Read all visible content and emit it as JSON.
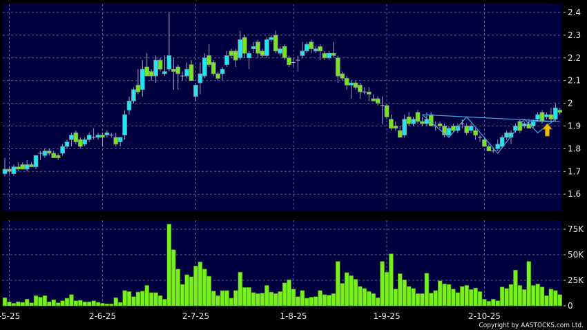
{
  "colors": {
    "background": "#00003f",
    "up": "#22e4f2",
    "down": "#78e41e",
    "volume": "#78f01e",
    "grid": "#5a5a90",
    "pattern": "#4aa8e8",
    "arrow": "#f5b800"
  },
  "copyright": "Copyright by AASTOCKS.com Ltd.",
  "chart_data": [
    {
      "type": "candlestick",
      "ylim": [
        1.55,
        2.42
      ],
      "yticks": [
        "2.4",
        "2.3",
        "2.2",
        "2.1",
        "2",
        "1.9",
        "1.8",
        "1.7",
        "1.6"
      ],
      "grid": true,
      "xticks": [
        {
          "index": 1,
          "label": "-5-25"
        },
        {
          "index": 22,
          "label": "2-6-25"
        },
        {
          "index": 43,
          "label": "2-7-25"
        },
        {
          "index": 65,
          "label": "1-8-25"
        },
        {
          "index": 86,
          "label": "1-9-25"
        },
        {
          "index": 108,
          "label": "2-10-25"
        }
      ],
      "ohlc": [
        [
          1.69,
          1.76,
          1.68,
          1.71
        ],
        [
          1.71,
          1.72,
          1.69,
          1.7
        ],
        [
          1.69,
          1.73,
          1.68,
          1.72
        ],
        [
          1.72,
          1.74,
          1.7,
          1.71
        ],
        [
          1.73,
          1.74,
          1.71,
          1.71
        ],
        [
          1.71,
          1.75,
          1.7,
          1.73
        ],
        [
          1.73,
          1.74,
          1.72,
          1.72
        ],
        [
          1.72,
          1.77,
          1.71,
          1.77
        ],
        [
          1.78,
          1.79,
          1.75,
          1.78
        ],
        [
          1.77,
          1.8,
          1.76,
          1.79
        ],
        [
          1.79,
          1.8,
          1.77,
          1.78
        ],
        [
          1.78,
          1.79,
          1.76,
          1.76
        ],
        [
          1.77,
          1.78,
          1.75,
          1.76
        ],
        [
          1.78,
          1.82,
          1.77,
          1.81
        ],
        [
          1.81,
          1.84,
          1.8,
          1.83
        ],
        [
          1.84,
          1.87,
          1.81,
          1.86
        ],
        [
          1.87,
          1.88,
          1.82,
          1.83
        ],
        [
          1.84,
          1.85,
          1.8,
          1.81
        ],
        [
          1.82,
          1.85,
          1.81,
          1.84
        ],
        [
          1.84,
          1.87,
          1.83,
          1.86
        ],
        [
          1.85,
          1.89,
          1.84,
          1.85
        ],
        [
          1.85,
          1.87,
          1.84,
          1.86
        ],
        [
          1.86,
          1.87,
          1.81,
          1.85
        ],
        [
          1.86,
          1.88,
          1.85,
          1.87
        ],
        [
          1.86,
          1.87,
          1.85,
          1.86
        ],
        [
          1.85,
          1.87,
          1.81,
          1.82
        ],
        [
          1.83,
          1.85,
          1.81,
          1.85
        ],
        [
          1.86,
          1.97,
          1.84,
          1.95
        ],
        [
          1.97,
          2.03,
          1.95,
          2.01
        ],
        [
          2.01,
          2.07,
          2.0,
          2.06
        ],
        [
          2.08,
          2.15,
          2.04,
          2.05
        ],
        [
          2.06,
          2.19,
          2.03,
          2.15
        ],
        [
          2.16,
          2.22,
          2.12,
          2.12
        ],
        [
          2.14,
          2.15,
          2.1,
          2.12
        ],
        [
          2.12,
          2.21,
          2.09,
          2.19
        ],
        [
          2.19,
          2.2,
          2.14,
          2.15
        ],
        [
          2.13,
          2.21,
          2.12,
          2.14
        ],
        [
          2.15,
          2.4,
          2.14,
          2.21
        ],
        [
          2.15,
          2.2,
          2.06,
          2.14
        ],
        [
          2.16,
          2.17,
          2.06,
          2.13
        ],
        [
          2.12,
          2.14,
          2.1,
          2.12
        ],
        [
          2.12,
          2.18,
          2.11,
          2.15
        ],
        [
          2.17,
          2.19,
          2.1,
          2.1
        ],
        [
          2.03,
          2.09,
          2.01,
          2.08
        ],
        [
          2.09,
          2.18,
          2.04,
          2.13
        ],
        [
          2.12,
          2.22,
          2.11,
          2.2
        ],
        [
          2.21,
          2.26,
          2.16,
          2.17
        ],
        [
          2.18,
          2.19,
          2.12,
          2.13
        ],
        [
          2.13,
          2.14,
          2.1,
          2.11
        ],
        [
          2.13,
          2.16,
          2.1,
          2.15
        ],
        [
          2.17,
          2.23,
          2.16,
          2.21
        ],
        [
          2.23,
          2.24,
          2.2,
          2.21
        ],
        [
          2.23,
          2.24,
          2.16,
          2.19
        ],
        [
          2.2,
          2.32,
          2.19,
          2.28
        ],
        [
          2.29,
          2.3,
          2.2,
          2.22
        ],
        [
          2.2,
          2.23,
          2.15,
          2.22
        ],
        [
          2.24,
          2.27,
          2.22,
          2.25
        ],
        [
          2.27,
          2.28,
          2.2,
          2.22
        ],
        [
          2.23,
          2.24,
          2.2,
          2.21
        ],
        [
          2.21,
          2.29,
          2.2,
          2.28
        ],
        [
          2.28,
          2.3,
          2.27,
          2.29
        ],
        [
          2.3,
          2.32,
          2.22,
          2.23
        ],
        [
          2.22,
          2.25,
          2.21,
          2.24
        ],
        [
          2.25,
          2.26,
          2.19,
          2.2
        ],
        [
          2.2,
          2.21,
          2.16,
          2.17
        ],
        [
          2.18,
          2.2,
          2.16,
          2.18
        ],
        [
          2.19,
          2.21,
          2.14,
          2.19
        ],
        [
          2.21,
          2.27,
          2.2,
          2.23
        ],
        [
          2.23,
          2.27,
          2.22,
          2.26
        ],
        [
          2.27,
          2.28,
          2.22,
          2.24
        ],
        [
          2.23,
          2.25,
          2.22,
          2.24
        ],
        [
          2.25,
          2.26,
          2.19,
          2.23
        ],
        [
          2.22,
          2.23,
          2.19,
          2.2
        ],
        [
          2.2,
          2.23,
          2.19,
          2.22
        ],
        [
          2.22,
          2.27,
          2.2,
          2.21
        ],
        [
          2.2,
          2.21,
          2.09,
          2.12
        ],
        [
          2.13,
          2.14,
          2.1,
          2.11
        ],
        [
          2.11,
          2.12,
          2.06,
          2.08
        ],
        [
          2.08,
          2.1,
          2.02,
          2.09
        ],
        [
          2.09,
          2.1,
          2.06,
          2.07
        ],
        [
          2.08,
          2.09,
          2.02,
          2.05
        ],
        [
          2.05,
          2.07,
          2.04,
          2.05
        ],
        [
          2.05,
          2.07,
          2.01,
          2.04
        ],
        [
          2.02,
          2.04,
          2.01,
          2.01
        ],
        [
          2.02,
          2.03,
          1.99,
          2.0
        ],
        [
          1.99,
          2.03,
          1.91,
          1.99
        ],
        [
          1.99,
          2.0,
          1.93,
          1.94
        ],
        [
          1.93,
          1.95,
          1.88,
          1.89
        ],
        [
          1.9,
          1.92,
          1.88,
          1.89
        ],
        [
          1.88,
          1.9,
          1.85,
          1.85
        ],
        [
          1.86,
          1.95,
          1.85,
          1.93
        ],
        [
          1.94,
          1.96,
          1.9,
          1.91
        ],
        [
          1.91,
          1.94,
          1.9,
          1.93
        ],
        [
          1.96,
          1.97,
          1.91,
          1.92
        ],
        [
          1.92,
          1.94,
          1.9,
          1.91
        ],
        [
          1.91,
          1.96,
          1.9,
          1.93
        ],
        [
          1.95,
          1.96,
          1.9,
          1.9
        ],
        [
          1.9,
          1.92,
          1.88,
          1.9
        ],
        [
          1.91,
          1.92,
          1.89,
          1.9
        ],
        [
          1.9,
          1.91,
          1.85,
          1.86
        ],
        [
          1.86,
          1.9,
          1.85,
          1.89
        ],
        [
          1.9,
          1.91,
          1.87,
          1.88
        ],
        [
          1.88,
          1.91,
          1.87,
          1.9
        ],
        [
          1.91,
          1.93,
          1.89,
          1.91
        ],
        [
          1.9,
          1.91,
          1.86,
          1.87
        ],
        [
          1.88,
          1.91,
          1.87,
          1.9
        ],
        [
          1.88,
          1.89,
          1.84,
          1.86
        ],
        [
          1.85,
          1.86,
          1.83,
          1.85
        ],
        [
          1.84,
          1.85,
          1.81,
          1.81
        ],
        [
          1.81,
          1.82,
          1.79,
          1.79
        ],
        [
          1.79,
          1.8,
          1.78,
          1.79
        ],
        [
          1.8,
          1.84,
          1.79,
          1.82
        ],
        [
          1.81,
          1.86,
          1.8,
          1.85
        ],
        [
          1.85,
          1.88,
          1.84,
          1.87
        ],
        [
          1.85,
          1.88,
          1.82,
          1.87
        ],
        [
          1.88,
          1.91,
          1.87,
          1.9
        ],
        [
          1.92,
          1.93,
          1.87,
          1.88
        ],
        [
          1.9,
          1.92,
          1.89,
          1.91
        ],
        [
          1.91,
          1.93,
          1.89,
          1.89
        ],
        [
          1.9,
          1.93,
          1.89,
          1.92
        ],
        [
          1.93,
          1.96,
          1.92,
          1.95
        ],
        [
          1.96,
          1.97,
          1.91,
          1.92
        ],
        [
          1.94,
          1.96,
          1.93,
          1.95
        ],
        [
          1.95,
          1.98,
          1.92,
          1.93
        ],
        [
          1.93,
          2.0,
          1.92,
          1.98
        ],
        [
          1.97,
          1.98,
          1.95,
          1.96
        ]
      ],
      "pattern_lines": [
        {
          "points": [
            [
              94,
              1.95
            ],
            [
              124,
              1.92
            ]
          ]
        },
        {
          "points": [
            [
              94,
              1.95
            ],
            [
              100,
              1.85
            ],
            [
              104,
              1.94
            ],
            [
              111,
              1.78
            ],
            [
              117,
              1.93
            ],
            [
              120,
              1.87
            ],
            [
              124,
              1.93
            ]
          ]
        },
        {
          "points": [
            [
              118,
              1.92
            ],
            [
              125,
              1.92
            ]
          ]
        }
      ],
      "signal_arrow": {
        "index": 122,
        "price": 1.88,
        "direction": "up"
      }
    },
    {
      "type": "bar",
      "ylim": [
        0,
        80
      ],
      "yticks": [
        {
          "value": 75,
          "label": "75K"
        },
        {
          "value": 50,
          "label": "50K"
        },
        {
          "value": 25,
          "label": "25K"
        },
        {
          "value": 0,
          "label": "0"
        }
      ],
      "unit": "K",
      "values": [
        8,
        4,
        2.5,
        4,
        3.5,
        6.5,
        3,
        10,
        8.5,
        10,
        4,
        6,
        3,
        5,
        7.5,
        11,
        5,
        5.5,
        4,
        4,
        5,
        3.5,
        2.5,
        2,
        2,
        8,
        3.5,
        15,
        14,
        9,
        13.5,
        14.5,
        20,
        13,
        13,
        10,
        6.5,
        80,
        55,
        36,
        21,
        30.5,
        28.5,
        39,
        43,
        36,
        29,
        14.5,
        10,
        15,
        15,
        7.5,
        15,
        33,
        18,
        18,
        13,
        12,
        12.5,
        20,
        13.5,
        12,
        14,
        22.5,
        25.5,
        16.5,
        9,
        15,
        7.5,
        8.5,
        9,
        15,
        11,
        10.5,
        12,
        43.5,
        22,
        32.5,
        29.5,
        26,
        19,
        17,
        14,
        12,
        8,
        43.5,
        33,
        51,
        16.5,
        31.5,
        25.5,
        19,
        17,
        12,
        12,
        32,
        12.5,
        15,
        24.5,
        21.5,
        21,
        16.5,
        13,
        19,
        20,
        16,
        17.5,
        14,
        6.5,
        4.5,
        6.5,
        5,
        18.5,
        17,
        21,
        35,
        20,
        16,
        43.5,
        20,
        21.5,
        18.5,
        10,
        16.5,
        15,
        11
      ]
    }
  ]
}
